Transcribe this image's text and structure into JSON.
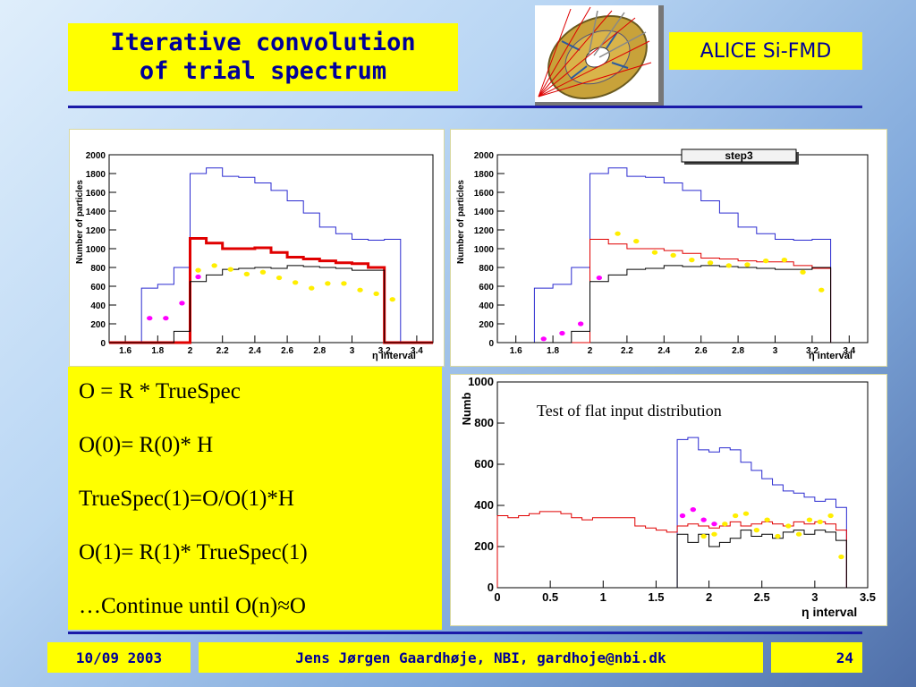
{
  "slide": {
    "title": "Iterative convolution of trial spectrum",
    "badge": "ALICE Si-FMD",
    "equations": [
      "O = R * TrueSpec",
      "O(0)= R(0)* H",
      "TrueSpec(1)=O/O(1)*H",
      " O(1)= R(1)* TrueSpec(1)",
      "…Continue until O(n)≈O"
    ],
    "footer": {
      "date": "10/09 2003",
      "author": "Jens Jørgen Gaardhøje, NBI, gardhoje@nbi.dk",
      "page": "24"
    },
    "colors": {
      "accent": "#ffff00",
      "title_text": "#000099",
      "rule": "#1a1aa8"
    }
  },
  "chart_data": [
    {
      "type": "step",
      "title": "",
      "xlabel": "η interval",
      "ylabel": "Number of particles",
      "xlim": [
        1.5,
        3.5
      ],
      "ylim": [
        0,
        2000
      ],
      "xticks": [
        1.6,
        1.8,
        2,
        2.2,
        2.4,
        2.6,
        2.8,
        3,
        3.2,
        3.4
      ],
      "xtick_labels": [
        "1.6",
        "1.8",
        "2",
        "2.2",
        "2.4",
        "2.6",
        "2.8",
        "3",
        "3.2",
        "3.4"
      ],
      "yticks": [
        0,
        200,
        400,
        600,
        800,
        1000,
        1200,
        1400,
        1600,
        1800,
        2000
      ],
      "ytick_labels": [
        "0",
        "200",
        "400",
        "600",
        "800",
        "1000",
        "1200",
        "1400",
        "1600",
        "1800",
        "2000"
      ],
      "edges": [
        1.5,
        1.7,
        1.8,
        1.9,
        2.0,
        2.1,
        2.2,
        2.3,
        2.4,
        2.5,
        2.6,
        2.7,
        2.8,
        2.9,
        3.0,
        3.1,
        3.2,
        3.3,
        3.5
      ],
      "series": [
        {
          "color": "#2a2ad0",
          "width": 1,
          "values": [
            0,
            580,
            620,
            800,
            1800,
            1860,
            1770,
            1760,
            1700,
            1620,
            1510,
            1380,
            1230,
            1160,
            1100,
            1090,
            1100,
            0
          ]
        },
        {
          "color": "#e00000",
          "width": 3,
          "values": [
            0,
            0,
            0,
            0,
            1110,
            1060,
            1000,
            1000,
            1010,
            960,
            910,
            890,
            870,
            850,
            840,
            800,
            0,
            0
          ]
        },
        {
          "color": "#000000",
          "width": 1,
          "values": [
            0,
            0,
            0,
            120,
            650,
            720,
            780,
            790,
            800,
            790,
            820,
            810,
            800,
            790,
            770,
            770,
            0,
            0
          ]
        }
      ],
      "points": [
        {
          "color": "#ff00ff",
          "x": [
            1.75,
            1.85,
            1.95,
            2.05
          ],
          "y": [
            260,
            260,
            420,
            700
          ]
        },
        {
          "color": "#ffee00",
          "x": [
            2.05,
            2.15,
            2.25,
            2.35,
            2.45,
            2.55,
            2.65,
            2.75,
            2.85,
            2.95,
            3.05,
            3.15,
            3.25
          ],
          "y": [
            770,
            820,
            780,
            730,
            750,
            690,
            640,
            580,
            630,
            630,
            560,
            520,
            460
          ]
        }
      ]
    },
    {
      "type": "step",
      "title": "step3",
      "xlabel": "η interval",
      "ylabel": "Number of particles",
      "xlim": [
        1.5,
        3.5
      ],
      "ylim": [
        0,
        2000
      ],
      "xticks": [
        1.6,
        1.8,
        2,
        2.2,
        2.4,
        2.6,
        2.8,
        3,
        3.2,
        3.4
      ],
      "xtick_labels": [
        "1.6",
        "1.8",
        "2",
        "2.2",
        "2.4",
        "2.6",
        "2.8",
        "3",
        "3.2",
        "3.4"
      ],
      "yticks": [
        0,
        200,
        400,
        600,
        800,
        1000,
        1200,
        1400,
        1600,
        1800,
        2000
      ],
      "ytick_labels": [
        "0",
        "200",
        "400",
        "600",
        "800",
        "1000",
        "1200",
        "1400",
        "1600",
        "1800",
        "2000"
      ],
      "edges": [
        1.5,
        1.7,
        1.8,
        1.9,
        2.0,
        2.1,
        2.2,
        2.3,
        2.4,
        2.5,
        2.6,
        2.7,
        2.8,
        2.9,
        3.0,
        3.1,
        3.2,
        3.3,
        3.5
      ],
      "series": [
        {
          "color": "#2a2ad0",
          "width": 1,
          "values": [
            0,
            580,
            620,
            800,
            1800,
            1860,
            1770,
            1760,
            1700,
            1620,
            1510,
            1380,
            1230,
            1160,
            1100,
            1090,
            1100,
            0
          ]
        },
        {
          "color": "#e00000",
          "width": 1,
          "values": [
            0,
            0,
            0,
            0,
            1100,
            1050,
            1000,
            1000,
            980,
            950,
            900,
            890,
            870,
            860,
            860,
            820,
            790,
            0
          ]
        },
        {
          "color": "#000000",
          "width": 1,
          "values": [
            0,
            0,
            0,
            120,
            650,
            720,
            780,
            790,
            820,
            810,
            820,
            810,
            800,
            790,
            780,
            780,
            800,
            0
          ]
        }
      ],
      "points": [
        {
          "color": "#ff00ff",
          "x": [
            1.75,
            1.85,
            1.95,
            2.05
          ],
          "y": [
            40,
            100,
            200,
            690
          ]
        },
        {
          "color": "#ffee00",
          "x": [
            2.15,
            2.25,
            2.35,
            2.45,
            2.55,
            2.65,
            2.75,
            2.85,
            2.95,
            3.05,
            3.15,
            3.25
          ],
          "y": [
            1160,
            1080,
            960,
            930,
            880,
            850,
            820,
            830,
            870,
            880,
            750,
            560
          ]
        }
      ]
    },
    {
      "type": "step",
      "title": "",
      "annotation": "Test of flat input distribution",
      "xlabel": "η interval",
      "ylabel": "Numb",
      "xlim": [
        0,
        3.5
      ],
      "ylim": [
        0,
        1000
      ],
      "xticks": [
        0,
        0.5,
        1,
        1.5,
        2,
        2.5,
        3,
        3.5
      ],
      "xtick_labels": [
        "0",
        "0.5",
        "1",
        "1.5",
        "2",
        "2.5",
        "3",
        "3.5"
      ],
      "yticks": [
        0,
        200,
        400,
        600,
        800,
        1000
      ],
      "ytick_labels": [
        "0",
        "200",
        "400",
        "600",
        "800",
        "1000"
      ],
      "edges": [
        0,
        0.1,
        0.2,
        0.3,
        0.4,
        0.5,
        0.6,
        0.7,
        0.8,
        0.9,
        1.0,
        1.1,
        1.2,
        1.3,
        1.4,
        1.5,
        1.6,
        1.7,
        1.8,
        1.9,
        2.0,
        2.1,
        2.2,
        2.3,
        2.4,
        2.5,
        2.6,
        2.7,
        2.8,
        2.9,
        3.0,
        3.1,
        3.2,
        3.3,
        3.5
      ],
      "series": [
        {
          "color": "#2a2ad0",
          "width": 1,
          "values": [
            0,
            0,
            0,
            0,
            0,
            0,
            0,
            0,
            0,
            0,
            0,
            0,
            0,
            0,
            0,
            0,
            0,
            720,
            730,
            670,
            660,
            680,
            670,
            610,
            570,
            530,
            500,
            470,
            460,
            440,
            420,
            430,
            390,
            0
          ]
        },
        {
          "color": "#e00000",
          "width": 1,
          "values": [
            350,
            340,
            350,
            360,
            370,
            370,
            360,
            340,
            330,
            340,
            340,
            340,
            340,
            300,
            290,
            280,
            270,
            300,
            310,
            300,
            290,
            300,
            320,
            300,
            310,
            320,
            310,
            300,
            320,
            310,
            320,
            310,
            280,
            0
          ]
        },
        {
          "color": "#000000",
          "width": 1,
          "values": [
            0,
            0,
            0,
            0,
            0,
            0,
            0,
            0,
            0,
            0,
            0,
            0,
            0,
            0,
            0,
            0,
            0,
            260,
            220,
            260,
            200,
            220,
            240,
            280,
            250,
            260,
            240,
            270,
            280,
            260,
            280,
            270,
            230,
            0
          ]
        }
      ],
      "points": [
        {
          "color": "#ff00ff",
          "x": [
            1.75,
            1.85,
            1.95,
            2.05
          ],
          "y": [
            350,
            380,
            330,
            310
          ]
        },
        {
          "color": "#ffee00",
          "x": [
            1.95,
            2.05,
            2.15,
            2.25,
            2.35,
            2.45,
            2.55,
            2.65,
            2.75,
            2.85,
            2.95,
            3.05,
            3.15,
            3.25
          ],
          "y": [
            250,
            260,
            310,
            350,
            360,
            280,
            330,
            250,
            300,
            260,
            330,
            320,
            350,
            150
          ]
        }
      ]
    }
  ]
}
